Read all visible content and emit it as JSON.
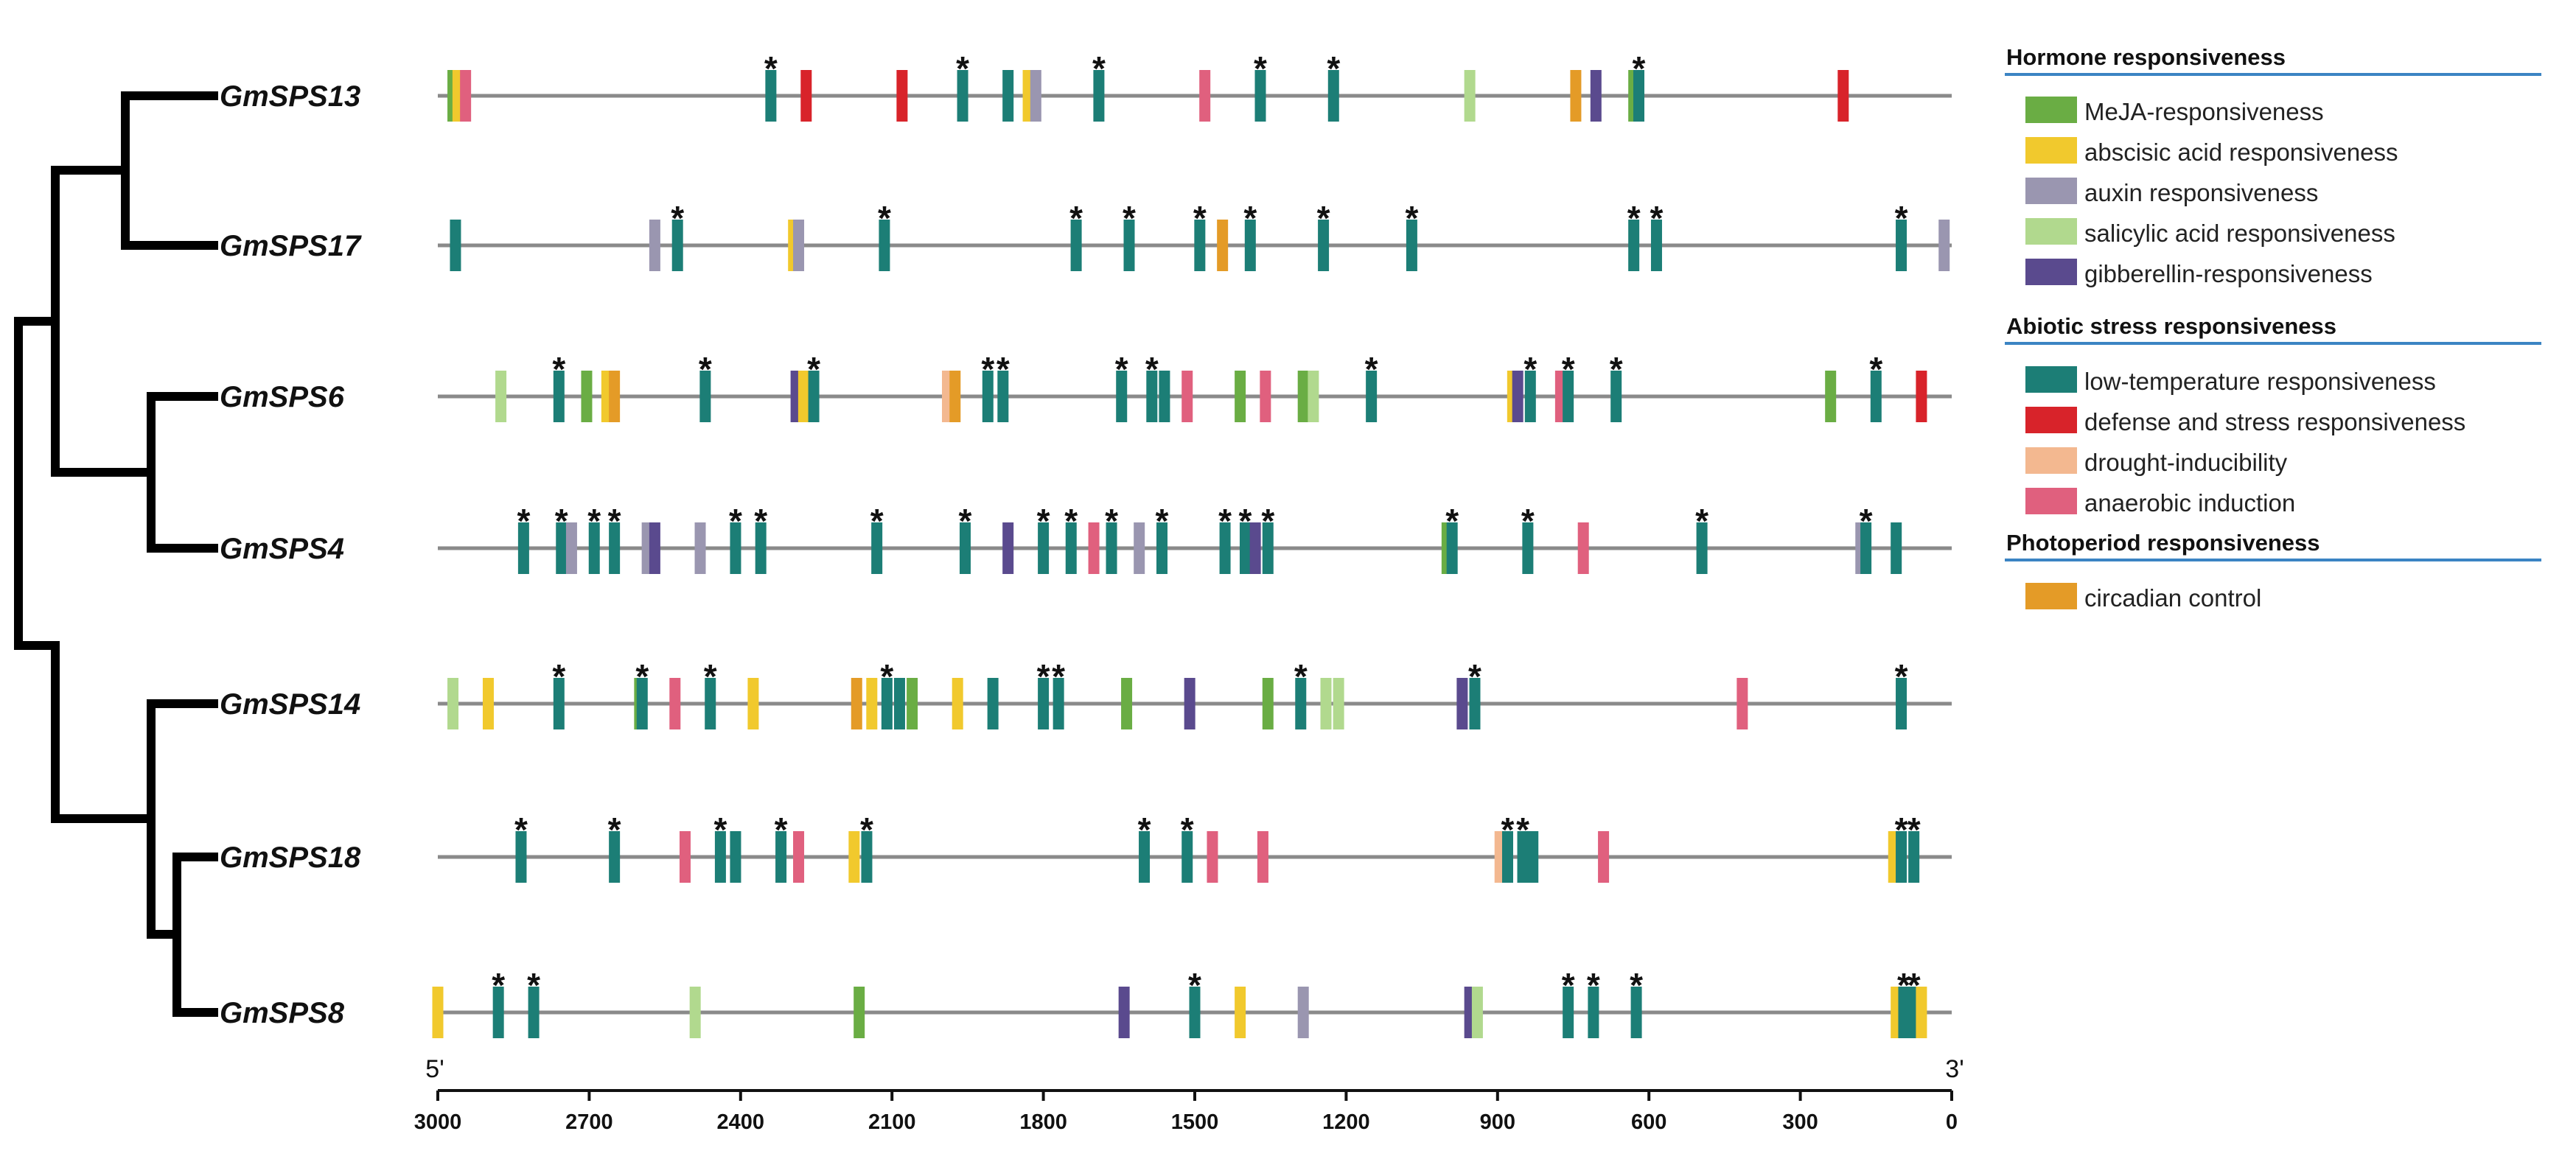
{
  "colors": {
    "MeJA": "#6aad44",
    "ABA": "#f1c92d",
    "auxin": "#9a96b0",
    "SA": "#b1d98e",
    "GA": "#5a4a8e",
    "LTR": "#1c7e76",
    "defense": "#d8232a",
    "drought": "#f3b890",
    "anaerobic": "#e0607e",
    "circadian": "#e49b27",
    "line": "#8a8a8a",
    "tree": "#000000",
    "divider": "#3b84c3"
  },
  "axis": {
    "start_label": "5'",
    "end_label": "3'",
    "max": 3000,
    "ticks": [
      3000,
      2700,
      2400,
      2100,
      1800,
      1500,
      1200,
      900,
      600,
      300,
      0
    ],
    "tick_labels": [
      "3000",
      "2700",
      "2400",
      "2100",
      "1800",
      "1500",
      "1200",
      "900",
      "600",
      "300",
      "0"
    ]
  },
  "legend": [
    {
      "heading": "Hormone responsiveness",
      "items": [
        {
          "key": "MeJA",
          "label": "MeJA-responsiveness"
        },
        {
          "key": "ABA",
          "label": "abscisic acid responsiveness"
        },
        {
          "key": "auxin",
          "label": "auxin responsiveness"
        },
        {
          "key": "SA",
          "label": "salicylic acid responsiveness"
        },
        {
          "key": "GA",
          "label": "gibberellin-responsiveness"
        }
      ]
    },
    {
      "heading": "Abiotic stress responsiveness",
      "items": [
        {
          "key": "LTR",
          "label": "low-temperature responsiveness"
        },
        {
          "key": "defense",
          "label": "defense and stress responsiveness"
        },
        {
          "key": "drought",
          "label": "drought-inducibility"
        },
        {
          "key": "anaerobic",
          "label": "anaerobic induction"
        }
      ]
    },
    {
      "heading": "Photoperiod responsiveness",
      "items": [
        {
          "key": "circadian",
          "label": "circadian control"
        }
      ]
    }
  ],
  "genes": [
    {
      "name": "GmSPS13",
      "elements": [
        {
          "pos": 2970,
          "type": "MeJA"
        },
        {
          "pos": 2960,
          "type": "ABA"
        },
        {
          "pos": 2945,
          "type": "anaerobic"
        },
        {
          "pos": 2340,
          "type": "LTR",
          "star": true
        },
        {
          "pos": 2270,
          "type": "defense"
        },
        {
          "pos": 2080,
          "type": "defense"
        },
        {
          "pos": 1960,
          "type": "LTR",
          "star": true
        },
        {
          "pos": 1870,
          "type": "LTR"
        },
        {
          "pos": 1830,
          "type": "ABA"
        },
        {
          "pos": 1815,
          "type": "auxin"
        },
        {
          "pos": 1690,
          "type": "LTR",
          "star": true
        },
        {
          "pos": 1480,
          "type": "anaerobic"
        },
        {
          "pos": 1370,
          "type": "LTR",
          "star": true
        },
        {
          "pos": 1225,
          "type": "LTR",
          "star": true
        },
        {
          "pos": 955,
          "type": "SA"
        },
        {
          "pos": 745,
          "type": "circadian"
        },
        {
          "pos": 705,
          "type": "GA"
        },
        {
          "pos": 630,
          "type": "MeJA"
        },
        {
          "pos": 620,
          "type": "LTR",
          "star": true
        },
        {
          "pos": 215,
          "type": "defense"
        }
      ]
    },
    {
      "name": "GmSPS17",
      "elements": [
        {
          "pos": 2965,
          "type": "LTR"
        },
        {
          "pos": 2570,
          "type": "auxin"
        },
        {
          "pos": 2525,
          "type": "LTR",
          "star": true
        },
        {
          "pos": 2295,
          "type": "ABA"
        },
        {
          "pos": 2285,
          "type": "auxin"
        },
        {
          "pos": 2115,
          "type": "LTR",
          "star": true
        },
        {
          "pos": 1735,
          "type": "LTR",
          "star": true
        },
        {
          "pos": 1630,
          "type": "LTR",
          "star": true
        },
        {
          "pos": 1490,
          "type": "LTR",
          "star": true
        },
        {
          "pos": 1445,
          "type": "circadian"
        },
        {
          "pos": 1390,
          "type": "LTR",
          "star": true
        },
        {
          "pos": 1245,
          "type": "LTR",
          "star": true
        },
        {
          "pos": 1070,
          "type": "LTR",
          "star": true
        },
        {
          "pos": 630,
          "type": "LTR",
          "star": true
        },
        {
          "pos": 585,
          "type": "LTR",
          "star": true
        },
        {
          "pos": 100,
          "type": "LTR",
          "star": true
        },
        {
          "pos": 15,
          "type": "auxin"
        }
      ]
    },
    {
      "name": "GmSPS6",
      "elements": [
        {
          "pos": 2875,
          "type": "SA"
        },
        {
          "pos": 2760,
          "type": "LTR",
          "star": true
        },
        {
          "pos": 2705,
          "type": "MeJA"
        },
        {
          "pos": 2665,
          "type": "ABA"
        },
        {
          "pos": 2650,
          "type": "circadian"
        },
        {
          "pos": 2470,
          "type": "LTR",
          "star": true
        },
        {
          "pos": 2290,
          "type": "GA"
        },
        {
          "pos": 2275,
          "type": "ABA"
        },
        {
          "pos": 2255,
          "type": "LTR",
          "star": true
        },
        {
          "pos": 1990,
          "type": "drought"
        },
        {
          "pos": 1975,
          "type": "circadian"
        },
        {
          "pos": 1910,
          "type": "LTR",
          "star": true
        },
        {
          "pos": 1880,
          "type": "LTR",
          "star": true
        },
        {
          "pos": 1645,
          "type": "LTR",
          "star": true
        },
        {
          "pos": 1585,
          "type": "LTR",
          "star": true
        },
        {
          "pos": 1560,
          "type": "LTR"
        },
        {
          "pos": 1515,
          "type": "anaerobic"
        },
        {
          "pos": 1410,
          "type": "MeJA"
        },
        {
          "pos": 1360,
          "type": "anaerobic"
        },
        {
          "pos": 1285,
          "type": "MeJA"
        },
        {
          "pos": 1265,
          "type": "SA"
        },
        {
          "pos": 1150,
          "type": "LTR",
          "star": true
        },
        {
          "pos": 870,
          "type": "ABA"
        },
        {
          "pos": 860,
          "type": "GA"
        },
        {
          "pos": 835,
          "type": "LTR",
          "star": true
        },
        {
          "pos": 775,
          "type": "anaerobic"
        },
        {
          "pos": 760,
          "type": "LTR",
          "star": true
        },
        {
          "pos": 665,
          "type": "LTR",
          "star": true
        },
        {
          "pos": 240,
          "type": "MeJA"
        },
        {
          "pos": 150,
          "type": "LTR",
          "star": true
        },
        {
          "pos": 60,
          "type": "defense"
        }
      ]
    },
    {
      "name": "GmSPS4",
      "elements": [
        {
          "pos": 2830,
          "type": "LTR",
          "star": true
        },
        {
          "pos": 2755,
          "type": "LTR",
          "star": true
        },
        {
          "pos": 2735,
          "type": "auxin"
        },
        {
          "pos": 2690,
          "type": "LTR",
          "star": true
        },
        {
          "pos": 2650,
          "type": "LTR",
          "star": true
        },
        {
          "pos": 2585,
          "type": "auxin"
        },
        {
          "pos": 2570,
          "type": "GA"
        },
        {
          "pos": 2480,
          "type": "auxin"
        },
        {
          "pos": 2410,
          "type": "LTR",
          "star": true
        },
        {
          "pos": 2360,
          "type": "LTR",
          "star": true
        },
        {
          "pos": 2130,
          "type": "LTR",
          "star": true
        },
        {
          "pos": 1955,
          "type": "LTR",
          "star": true
        },
        {
          "pos": 1870,
          "type": "GA"
        },
        {
          "pos": 1800,
          "type": "LTR",
          "star": true
        },
        {
          "pos": 1745,
          "type": "LTR",
          "star": true
        },
        {
          "pos": 1700,
          "type": "anaerobic"
        },
        {
          "pos": 1665,
          "type": "LTR",
          "star": true
        },
        {
          "pos": 1610,
          "type": "auxin"
        },
        {
          "pos": 1565,
          "type": "LTR",
          "star": true
        },
        {
          "pos": 1440,
          "type": "LTR",
          "star": true
        },
        {
          "pos": 1400,
          "type": "LTR",
          "star": true
        },
        {
          "pos": 1380,
          "type": "GA"
        },
        {
          "pos": 1355,
          "type": "LTR",
          "star": true
        },
        {
          "pos": 1000,
          "type": "MeJA"
        },
        {
          "pos": 990,
          "type": "LTR",
          "star": true
        },
        {
          "pos": 840,
          "type": "LTR",
          "star": true
        },
        {
          "pos": 730,
          "type": "anaerobic"
        },
        {
          "pos": 495,
          "type": "LTR",
          "star": true
        },
        {
          "pos": 180,
          "type": "auxin"
        },
        {
          "pos": 170,
          "type": "LTR",
          "star": true
        },
        {
          "pos": 110,
          "type": "LTR"
        }
      ]
    },
    {
      "name": "GmSPS14",
      "elements": [
        {
          "pos": 2970,
          "type": "SA"
        },
        {
          "pos": 2900,
          "type": "ABA"
        },
        {
          "pos": 2760,
          "type": "LTR",
          "star": true
        },
        {
          "pos": 2600,
          "type": "MeJA"
        },
        {
          "pos": 2595,
          "type": "LTR",
          "star": true
        },
        {
          "pos": 2530,
          "type": "anaerobic"
        },
        {
          "pos": 2460,
          "type": "LTR",
          "star": true
        },
        {
          "pos": 2375,
          "type": "ABA"
        },
        {
          "pos": 2170,
          "type": "circadian"
        },
        {
          "pos": 2140,
          "type": "ABA"
        },
        {
          "pos": 2110,
          "type": "LTR",
          "star": true
        },
        {
          "pos": 2085,
          "type": "LTR"
        },
        {
          "pos": 2060,
          "type": "MeJA"
        },
        {
          "pos": 1970,
          "type": "ABA"
        },
        {
          "pos": 1900,
          "type": "LTR"
        },
        {
          "pos": 1800,
          "type": "LTR",
          "star": true
        },
        {
          "pos": 1770,
          "type": "LTR",
          "star": true
        },
        {
          "pos": 1635,
          "type": "MeJA"
        },
        {
          "pos": 1510,
          "type": "GA"
        },
        {
          "pos": 1355,
          "type": "MeJA"
        },
        {
          "pos": 1290,
          "type": "LTR",
          "star": true
        },
        {
          "pos": 1240,
          "type": "SA"
        },
        {
          "pos": 1215,
          "type": "SA"
        },
        {
          "pos": 970,
          "type": "GA"
        },
        {
          "pos": 945,
          "type": "LTR",
          "star": true
        },
        {
          "pos": 415,
          "type": "anaerobic"
        },
        {
          "pos": 100,
          "type": "LTR",
          "star": true
        }
      ]
    },
    {
      "name": "GmSPS18",
      "elements": [
        {
          "pos": 2835,
          "type": "LTR",
          "star": true
        },
        {
          "pos": 2650,
          "type": "LTR",
          "star": true
        },
        {
          "pos": 2510,
          "type": "anaerobic"
        },
        {
          "pos": 2440,
          "type": "LTR",
          "star": true
        },
        {
          "pos": 2410,
          "type": "LTR"
        },
        {
          "pos": 2320,
          "type": "LTR",
          "star": true
        },
        {
          "pos": 2285,
          "type": "anaerobic"
        },
        {
          "pos": 2175,
          "type": "ABA"
        },
        {
          "pos": 2150,
          "type": "LTR",
          "star": true
        },
        {
          "pos": 1600,
          "type": "LTR",
          "star": true
        },
        {
          "pos": 1515,
          "type": "LTR",
          "star": true
        },
        {
          "pos": 1465,
          "type": "anaerobic"
        },
        {
          "pos": 1365,
          "type": "anaerobic"
        },
        {
          "pos": 895,
          "type": "drought"
        },
        {
          "pos": 880,
          "type": "LTR",
          "star": true
        },
        {
          "pos": 850,
          "type": "LTR",
          "star": true
        },
        {
          "pos": 830,
          "type": "LTR"
        },
        {
          "pos": 690,
          "type": "anaerobic"
        },
        {
          "pos": 115,
          "type": "ABA"
        },
        {
          "pos": 100,
          "type": "LTR",
          "star": true
        },
        {
          "pos": 75,
          "type": "LTR",
          "star": true
        }
      ]
    },
    {
      "name": "GmSPS8",
      "elements": [
        {
          "pos": 3000,
          "type": "ABA"
        },
        {
          "pos": 2880,
          "type": "LTR",
          "star": true
        },
        {
          "pos": 2810,
          "type": "LTR",
          "star": true
        },
        {
          "pos": 2490,
          "type": "SA"
        },
        {
          "pos": 2165,
          "type": "MeJA"
        },
        {
          "pos": 1640,
          "type": "GA"
        },
        {
          "pos": 1500,
          "type": "LTR",
          "star": true
        },
        {
          "pos": 1410,
          "type": "ABA"
        },
        {
          "pos": 1285,
          "type": "auxin"
        },
        {
          "pos": 955,
          "type": "GA"
        },
        {
          "pos": 940,
          "type": "SA"
        },
        {
          "pos": 760,
          "type": "LTR",
          "star": true
        },
        {
          "pos": 710,
          "type": "LTR",
          "star": true
        },
        {
          "pos": 625,
          "type": "LTR",
          "star": true
        },
        {
          "pos": 110,
          "type": "ABA"
        },
        {
          "pos": 95,
          "type": "LTR",
          "star": true
        },
        {
          "pos": 75,
          "type": "LTR",
          "star": true
        },
        {
          "pos": 60,
          "type": "ABA"
        }
      ]
    }
  ],
  "star_glyph": "*"
}
